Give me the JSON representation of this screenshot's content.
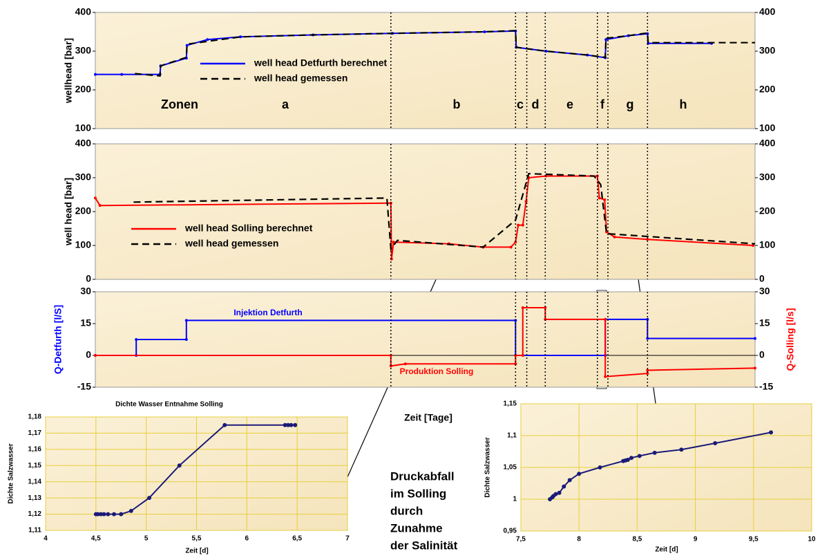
{
  "chart_data": [
    {
      "type": "line",
      "y_label": "wellhead [bar]",
      "xlim": [
        0,
        10
      ],
      "ylim": [
        100,
        400
      ],
      "yticks": [
        100,
        200,
        300,
        400
      ],
      "right_axis": true,
      "zones": [
        "Zonen",
        "a",
        "b",
        "c",
        "d",
        "e",
        "f",
        "g",
        "h"
      ],
      "dividers": [
        4.48,
        6.37,
        6.54,
        6.82,
        7.61,
        7.77,
        8.37
      ],
      "series": [
        {
          "name": "well head Detfurth berechnet",
          "color": "#0000ff",
          "style": "solid",
          "markers": true,
          "x": [
            0,
            0.4,
            0.98,
            0.99,
            1.38,
            1.39,
            1.7,
            2.2,
            3.3,
            4.5,
            5.9,
            6.37,
            6.38,
            6.83,
            7.46,
            7.73,
            7.74,
            8.08,
            8.37,
            8.38,
            9.34
          ],
          "values": [
            240,
            240,
            240,
            262,
            282,
            315,
            330,
            337,
            342,
            346,
            350,
            352,
            310,
            300,
            290,
            283,
            330,
            340,
            345,
            320,
            320
          ]
        },
        {
          "name": "well head gemessen",
          "color": "#000000",
          "style": "dashed",
          "markers": false,
          "x": [
            0.6,
            0.98,
            0.99,
            1.38,
            1.39,
            2.2,
            3.3,
            4.5,
            5.9,
            6.37,
            6.38,
            6.83,
            7.46,
            7.73,
            7.74,
            8.08,
            8.37,
            8.38,
            10
          ],
          "values": [
            242,
            236,
            262,
            284,
            318,
            337,
            342,
            346,
            350,
            353,
            310,
            300,
            290,
            284,
            333,
            340,
            347,
            322,
            322
          ]
        }
      ]
    },
    {
      "type": "line",
      "y_label": "well head [bar]",
      "xlim": [
        0,
        10
      ],
      "ylim": [
        0,
        400
      ],
      "yticks": [
        0,
        100,
        200,
        300,
        400
      ],
      "right_axis": true,
      "series": [
        {
          "name": "well head Solling  berechnet",
          "color": "#ff0000",
          "style": "solid",
          "markers": true,
          "x": [
            0,
            0.07,
            4.48,
            4.49,
            4.52,
            5.36,
            5.88,
            6.3,
            6.37,
            6.41,
            6.48,
            6.53,
            6.57,
            6.83,
            7.61,
            7.64,
            7.72,
            7.75,
            7.87,
            8.37,
            9.97
          ],
          "values": [
            240,
            218,
            225,
            60,
            110,
            105,
            95,
            95,
            110,
            160,
            160,
            230,
            300,
            305,
            305,
            240,
            235,
            140,
            125,
            118,
            100
          ]
        },
        {
          "name": "well head gemessen",
          "color": "#000000",
          "style": "dashed",
          "markers": false,
          "x": [
            0.58,
            4.42,
            4.48,
            4.58,
            5.88,
            6.37,
            6.48,
            6.57,
            7.56,
            7.66,
            7.75,
            10
          ],
          "values": [
            228,
            240,
            90,
            115,
            95,
            175,
            250,
            312,
            305,
            280,
            135,
            105
          ]
        }
      ]
    },
    {
      "type": "line",
      "y_label": "Q-Detfurth  [l/S]",
      "y2_label": "Q-Solling [l/s]",
      "x_label": "Zeit [Tage]",
      "xlim": [
        0,
        10
      ],
      "ylim": [
        -15,
        30
      ],
      "yticks": [
        -15,
        0,
        15,
        30
      ],
      "y2lim": [
        -15,
        30
      ],
      "y2ticks": [
        -15,
        0,
        15,
        30
      ],
      "annotations": [
        "Injektion Detfurth",
        "Produktion Solling"
      ],
      "series": [
        {
          "name": "Injektion Detfurth",
          "color": "#0000ff",
          "style": "solid",
          "markers": true,
          "x": [
            0,
            0.62,
            0.62,
            1.38,
            1.38,
            6.37,
            6.37,
            7.73,
            7.73,
            8.37,
            8.37,
            10
          ],
          "values": [
            0,
            0,
            7.5,
            7.5,
            16.5,
            16.5,
            0,
            0,
            17,
            17,
            8,
            8
          ]
        },
        {
          "name": "Produktion Solling",
          "color": "#ff0000",
          "style": "solid",
          "markers": true,
          "axis": "y2",
          "x": [
            0,
            4.48,
            4.48,
            4.7,
            6.37,
            6.37,
            6.48,
            6.48,
            6.82,
            6.82,
            7.73,
            7.73,
            8.37,
            8.37,
            10
          ],
          "values": [
            0,
            0,
            -5,
            -4,
            -4,
            0,
            0,
            22.5,
            22.5,
            17,
            17,
            -10,
            -8.5,
            -7,
            -6
          ]
        }
      ]
    },
    {
      "type": "line",
      "title": "Dichte Wasser Entnahme Solling",
      "x_label": "Zeit [d]",
      "y_label": "Dichte Salzwasser",
      "grid": true,
      "xlim": [
        4,
        7
      ],
      "xticks": [
        4,
        {
          "value": 4.5,
          "label": "4,5"
        },
        5,
        {
          "value": 5.5,
          "label": "5,5"
        },
        6,
        {
          "value": 6.5,
          "label": "6,5"
        },
        7
      ],
      "ylim": [
        1.11,
        1.18
      ],
      "yticks": [
        {
          "value": 1.11,
          "label": "1,11"
        },
        {
          "value": 1.12,
          "label": "1,12"
        },
        {
          "value": 1.13,
          "label": "1,13"
        },
        {
          "value": 1.14,
          "label": "1,14"
        },
        {
          "value": 1.15,
          "label": "1,15"
        },
        {
          "value": 1.16,
          "label": "1,16"
        },
        {
          "value": 1.17,
          "label": "1,17"
        },
        {
          "value": 1.18,
          "label": "1,18"
        }
      ],
      "color": "#1a1a78",
      "style": "solid",
      "markers": true,
      "x": [
        4.5,
        4.52,
        4.55,
        4.58,
        4.62,
        4.68,
        4.75,
        4.85,
        5.03,
        5.33,
        5.78,
        6.38,
        6.41,
        6.44,
        6.48
      ],
      "values": [
        1.12,
        1.12,
        1.12,
        1.12,
        1.12,
        1.12,
        1.12,
        1.122,
        1.13,
        1.15,
        1.175,
        1.175,
        1.175,
        1.175,
        1.175
      ]
    },
    {
      "type": "line",
      "x_label": "Zeit [d]",
      "y_label": "Dichte Salzwasser",
      "grid": true,
      "xlim": [
        7.5,
        10
      ],
      "xticks": [
        {
          "value": 7.5,
          "label": "7,5"
        },
        8,
        {
          "value": 8.5,
          "label": "8,5"
        },
        9,
        {
          "value": 9.5,
          "label": "9,5"
        },
        10
      ],
      "ylim": [
        0.95,
        1.15
      ],
      "yticks": [
        {
          "value": 0.95,
          "label": "0,95"
        },
        1,
        {
          "value": 1.05,
          "label": "1,05"
        },
        {
          "value": 1.1,
          "label": "1,1"
        },
        {
          "value": 1.15,
          "label": "1,15"
        }
      ],
      "color": "#1a1a78",
      "style": "solid",
      "markers": true,
      "x": [
        7.75,
        7.77,
        7.78,
        7.8,
        7.83,
        7.87,
        7.92,
        8.0,
        8.18,
        8.38,
        8.4,
        8.42,
        8.45,
        8.52,
        8.65,
        8.88,
        9.17,
        9.65
      ],
      "values": [
        1.0,
        1.003,
        1.005,
        1.008,
        1.01,
        1.02,
        1.03,
        1.04,
        1.05,
        1.06,
        1.061,
        1.062,
        1.065,
        1.068,
        1.073,
        1.078,
        1.088,
        1.105
      ]
    }
  ],
  "note": [
    "Druckabfall",
    "im Solling",
    "durch",
    "Zunahme",
    "der Salinität"
  ]
}
